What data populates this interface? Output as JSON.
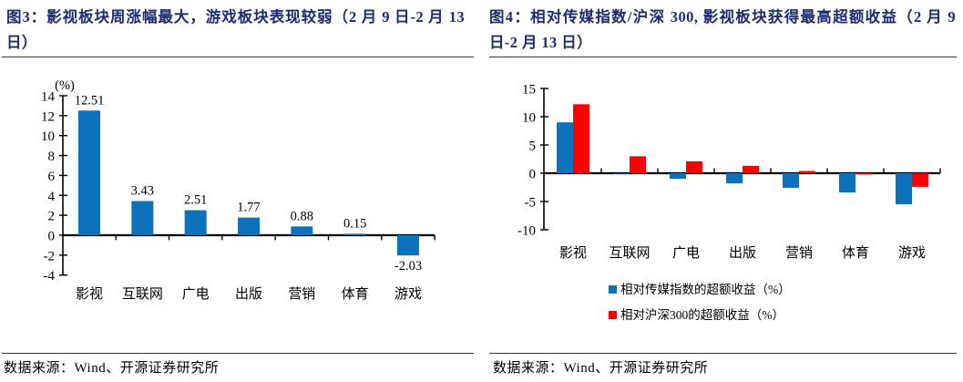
{
  "figures": [
    {
      "title": "图3：影视板块周涨幅最大，游戏板块表现较弱（2 月 9 日-2 月 13 日）",
      "source": "数据来源：Wind、开源证券研究所"
    },
    {
      "title": "图4：相对传媒指数/沪深 300, 影视板块获得最高超额收益（2 月 9 日-2 月 13 日）",
      "source": "数据来源：Wind、开源证券研究所"
    }
  ],
  "colors": {
    "title_text": "#1E2B72",
    "axis": "#000000",
    "rule": "#3a3a3a",
    "bar_blue": "#0C72BC",
    "bar_red": "#FF0000"
  },
  "chart_data": [
    {
      "type": "bar",
      "title": "影视板块周涨幅最大，游戏板块表现较弱（2月9日-2月13日）",
      "categories": [
        "影视",
        "互联网",
        "广电",
        "出版",
        "营销",
        "体育",
        "游戏"
      ],
      "values": [
        12.51,
        3.43,
        2.51,
        1.77,
        0.88,
        0.15,
        -2.03
      ],
      "xlabel": "",
      "ylabel": "(%)",
      "ylim": [
        -4,
        14
      ],
      "ytick_step": 2,
      "grid": false,
      "legend_position": "none",
      "data_labels": true,
      "bar_color": "#0C72BC"
    },
    {
      "type": "bar",
      "title": "相对传媒指数/沪深300，影视板块获得最高超额收益（2月9日-2月13日）",
      "categories": [
        "影视",
        "互联网",
        "广电",
        "出版",
        "营销",
        "体育",
        "游戏"
      ],
      "series": [
        {
          "name": "相对传媒指数的超额收益（%）",
          "color": "#0C72BC",
          "values": [
            9.0,
            -0.1,
            -1.0,
            -1.8,
            -2.6,
            -3.4,
            -5.5
          ]
        },
        {
          "name": "相对沪深300的超额收益（%）",
          "color": "#FF0000",
          "values": [
            12.2,
            3.0,
            2.1,
            1.3,
            0.4,
            -0.2,
            -2.4
          ]
        }
      ],
      "xlabel": "",
      "ylabel": "",
      "ylim": [
        -10,
        15
      ],
      "ytick_step": 5,
      "grid": false,
      "legend_position": "bottom",
      "data_labels": false
    }
  ]
}
